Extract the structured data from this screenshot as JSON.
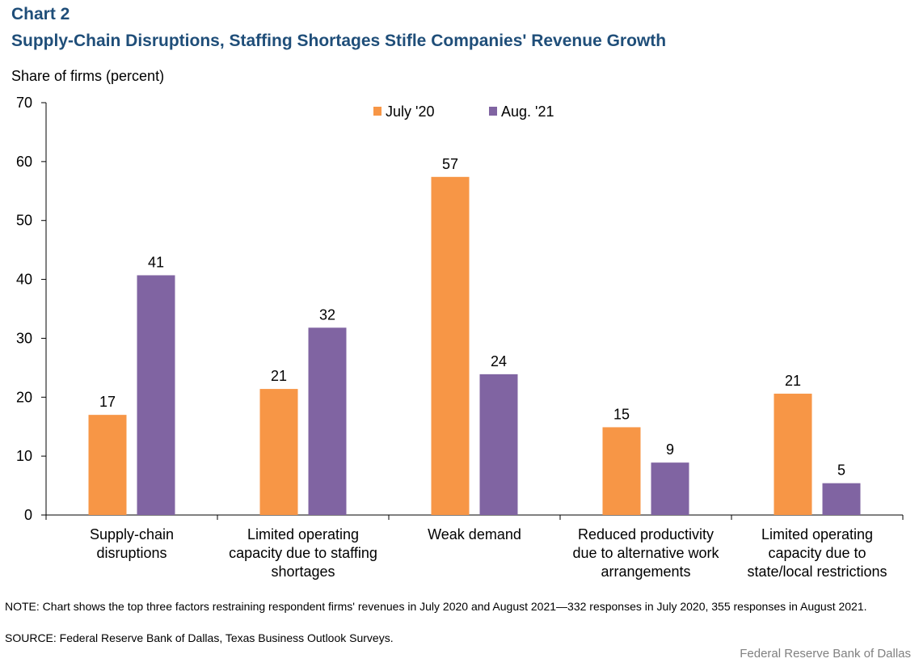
{
  "chart_label": "Chart 2",
  "chart_data": {
    "type": "bar",
    "title": "Supply-Chain Disruptions, Staffing Shortages Stifle Companies' Revenue Growth",
    "ylabel": "Share of firms (percent)",
    "xlabel": "",
    "ylim": [
      0,
      70
    ],
    "yticks": [
      0,
      10,
      20,
      30,
      40,
      50,
      60,
      70
    ],
    "categories": [
      [
        "Supply-chain",
        "disruptions"
      ],
      [
        "Limited operating",
        "capacity due to staffing",
        "shortages"
      ],
      [
        "Weak demand"
      ],
      [
        "Reduced productivity",
        "due to alternative work",
        "arrangements"
      ],
      [
        "Limited operating",
        "capacity due to",
        "state/local restrictions"
      ]
    ],
    "series": [
      {
        "name": "July '20",
        "color": "#f79646",
        "values": [
          17,
          21.4,
          57.4,
          14.9,
          20.6
        ],
        "labels": [
          "17",
          "21",
          "57",
          "15",
          "21"
        ]
      },
      {
        "name": "Aug. '21",
        "color": "#8064a2",
        "values": [
          40.7,
          31.8,
          23.9,
          8.9,
          5.4
        ],
        "labels": [
          "41",
          "32",
          "24",
          "9",
          "5"
        ]
      }
    ],
    "legend": "top-center",
    "grid": false
  },
  "note": "NOTE: Chart shows the top three factors restraining respondent firms' revenues in July 2020 and August 2021—332 responses in July 2020, 355 responses in August 2021.",
  "source": "SOURCE: Federal Reserve Bank of Dallas, Texas Business Outlook Surveys.",
  "credit": "Federal Reserve Bank of Dallas"
}
